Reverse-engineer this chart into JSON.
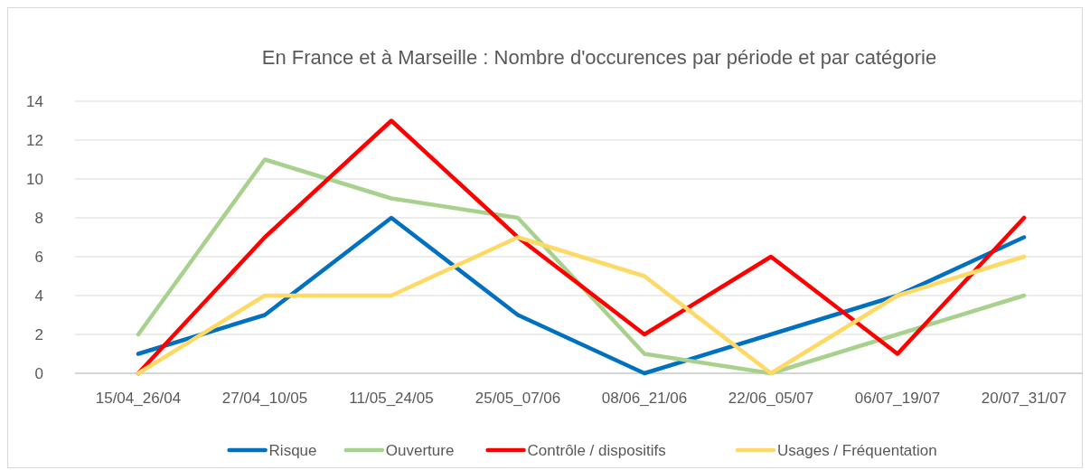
{
  "chart_data": {
    "type": "line",
    "title": "En France et à Marseille : Nombre d'occurences par période et par catégorie",
    "categories": [
      "15/04_26/04",
      "27/04_10/05",
      "11/05_24/05",
      "25/05_07/06",
      "08/06_21/06",
      "22/06_05/07",
      "06/07_19/07",
      "20/07_31/07"
    ],
    "series": [
      {
        "name": "Risque",
        "color": "#0070c0",
        "values": [
          1,
          3,
          8,
          3,
          0,
          2,
          4,
          7
        ]
      },
      {
        "name": "Ouverture",
        "color": "#a9d18e",
        "values": [
          2,
          11,
          9,
          8,
          1,
          0,
          2,
          4
        ]
      },
      {
        "name": "Contrôle / dispositifs",
        "color": "#ff0000",
        "values": [
          0,
          7,
          13,
          7,
          2,
          6,
          1,
          8
        ]
      },
      {
        "name": "Usages / Fréquentation",
        "color": "#ffd966",
        "values": [
          0,
          4,
          4,
          7,
          5,
          0,
          4,
          6
        ]
      }
    ],
    "ylim": [
      0,
      14
    ],
    "yticks": [
      0,
      2,
      4,
      6,
      8,
      10,
      12,
      14
    ],
    "grid": "y",
    "legend": "bottom",
    "marker": "none",
    "line_style": "solid"
  }
}
